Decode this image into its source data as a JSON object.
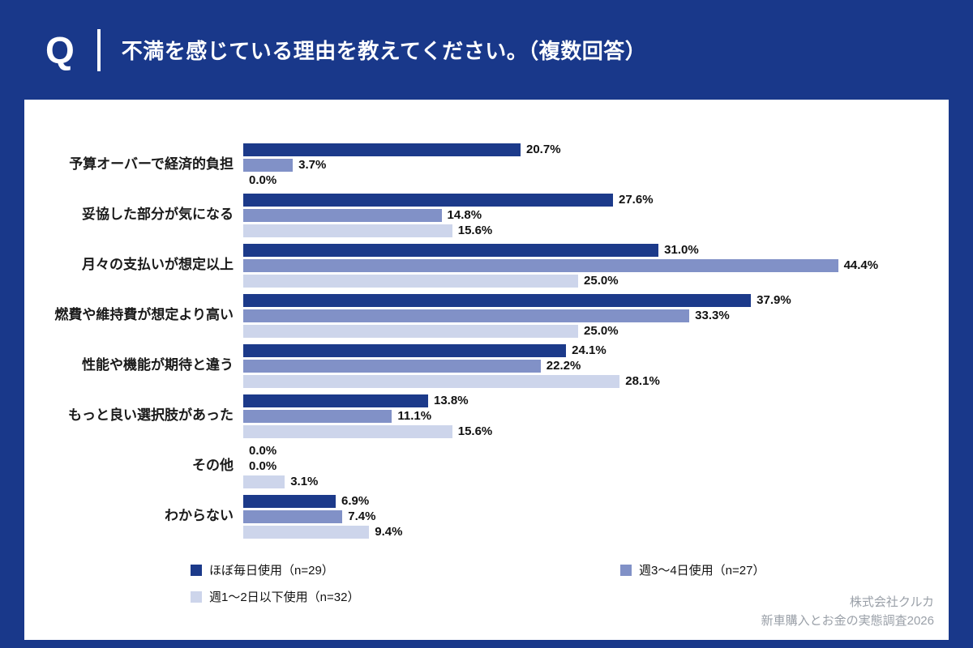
{
  "header": {
    "q_label": "Q",
    "title": "不満を感じている理由を教えてください。（複数回答）"
  },
  "chart_data": {
    "type": "bar",
    "orientation": "horizontal",
    "title": "不満を感じている理由を教えてください。（複数回答）",
    "xlabel": "",
    "ylabel": "",
    "xlim": [
      0,
      46
    ],
    "grid": false,
    "legend_position": "bottom",
    "value_suffix": "%",
    "categories": [
      "予算オーバーで経済的負担",
      "妥協した部分が気になる",
      "月々の支払いが想定以上",
      "燃費や維持費が想定より高い",
      "性能や機能が期待と違う",
      "もっと良い選択肢があった",
      "その他",
      "わからない"
    ],
    "series": [
      {
        "name": "ほぼ毎日使用（n=29）",
        "color": "#1C3A8A",
        "values": [
          20.7,
          27.6,
          31.0,
          37.9,
          24.1,
          13.8,
          0.0,
          6.9
        ]
      },
      {
        "name": "週3〜4日使用（n=27）",
        "color": "#8191C7",
        "values": [
          3.7,
          14.8,
          44.4,
          33.3,
          22.2,
          11.1,
          0.0,
          7.4
        ]
      },
      {
        "name": "週1〜2日以下使用（n=32）",
        "color": "#CDD5EB",
        "values": [
          0.0,
          15.6,
          25.0,
          25.0,
          28.1,
          15.6,
          3.1,
          9.4
        ]
      }
    ]
  },
  "footer": {
    "company": "株式会社クルカ",
    "survey": "新車購入とお金の実態調査2026"
  },
  "colors": {
    "page_background": "#19388A",
    "card_background": "#FFFFFF",
    "series1": "#1C3A8A",
    "series2": "#8191C7",
    "series3": "#CDD5EB"
  }
}
